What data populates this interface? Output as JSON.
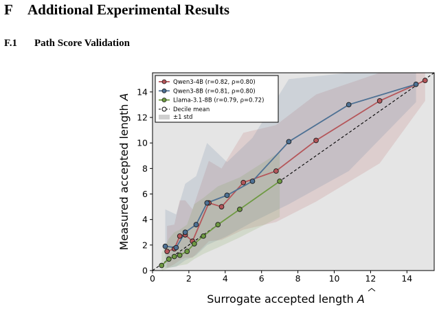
{
  "section": {
    "number": "F",
    "title": "Additional Experimental Results"
  },
  "subsection": {
    "number": "F.1",
    "title": "Path Score Validation"
  },
  "chart_data": {
    "type": "line",
    "title": "",
    "xlabel": "Surrogate accepted length",
    "xlabel_symbol": "A",
    "ylabel": "Measured accepted length",
    "ylabel_symbol": "A",
    "xlim": [
      0,
      15.5
    ],
    "ylim": [
      0,
      15.5
    ],
    "xticks": [
      0,
      2,
      4,
      6,
      8,
      10,
      12,
      14
    ],
    "yticks": [
      0,
      2,
      4,
      6,
      8,
      10,
      12,
      14
    ],
    "grid": false,
    "legend_position": "top-left",
    "background": "#e5e5e5",
    "series": [
      {
        "name": "Qwen3-4B (r=0.82, ρ=0.80)",
        "color": "#b5565a",
        "x": [
          0.8,
          1.2,
          1.5,
          1.8,
          2.2,
          3.1,
          3.8,
          5.0,
          6.8,
          9.0,
          12.5,
          15.0
        ],
        "y": [
          1.5,
          1.7,
          2.7,
          2.8,
          2.3,
          5.3,
          5.0,
          6.9,
          7.8,
          10.2,
          13.3,
          14.9
        ],
        "lower": [
          0.2,
          0.5,
          0.8,
          1.0,
          1.0,
          2.3,
          2.4,
          3.2,
          3.8,
          5.4,
          8.4,
          13.3
        ],
        "upper": [
          3.5,
          3.6,
          5.5,
          5.5,
          4.8,
          8.6,
          8.0,
          10.8,
          11.4,
          13.8,
          15.5,
          15.5
        ]
      },
      {
        "name": "Qwen3-8B (r=0.81, ρ=0.80)",
        "color": "#4e7194",
        "x": [
          0.7,
          1.3,
          1.8,
          2.4,
          3.0,
          4.1,
          5.5,
          7.5,
          10.8,
          14.5
        ],
        "y": [
          1.9,
          1.8,
          3.0,
          3.6,
          5.3,
          5.9,
          7.0,
          10.1,
          13.0,
          14.6
        ],
        "lower": [
          0.2,
          0.3,
          0.8,
          1.2,
          2.0,
          2.7,
          3.8,
          5.2,
          7.8,
          13.2
        ],
        "upper": [
          4.8,
          4.4,
          6.8,
          7.4,
          10.0,
          8.5,
          10.4,
          15.0,
          15.5,
          15.5
        ]
      },
      {
        "name": "Llama-3.1-8B (r=0.79, ρ=0.72)",
        "color": "#6e9a42",
        "x": [
          0.5,
          0.9,
          1.2,
          1.5,
          1.9,
          2.3,
          2.8,
          3.6,
          4.8,
          7.0
        ],
        "y": [
          0.4,
          0.9,
          1.1,
          1.2,
          1.5,
          2.1,
          2.7,
          3.6,
          4.8,
          7.0
        ],
        "lower": [
          0.0,
          0.2,
          0.3,
          0.4,
          0.5,
          0.9,
          1.3,
          1.8,
          2.6,
          4.2
        ],
        "upper": [
          1.4,
          2.5,
          3.0,
          3.2,
          3.6,
          5.2,
          5.7,
          6.6,
          7.3,
          9.3
        ]
      }
    ],
    "reference_line": {
      "name": "Decile mean",
      "style": "dashed",
      "color": "#000000"
    },
    "band_legend": {
      "name": "±1 std",
      "color": "#cfcfcf"
    }
  }
}
